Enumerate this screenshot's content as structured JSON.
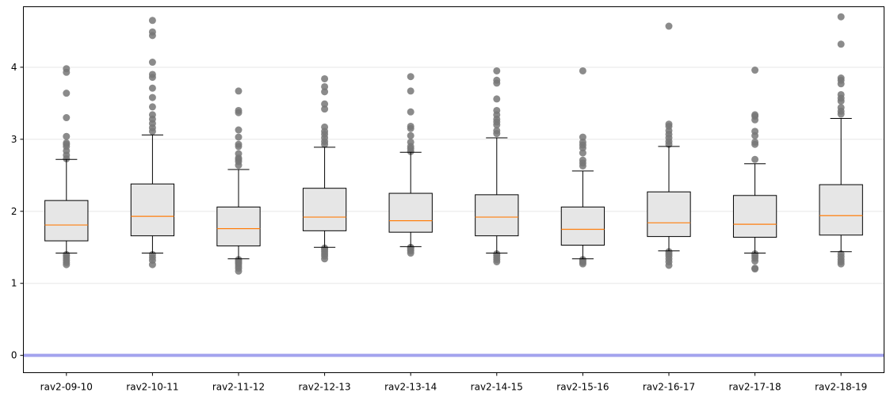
{
  "chart_data": {
    "type": "boxplot",
    "title": "",
    "xlabel": "",
    "ylabel": "",
    "ylim": [
      -0.24,
      4.84
    ],
    "yticks": [
      0,
      1,
      2,
      3,
      4
    ],
    "ytick_labels": [
      "0",
      "1",
      "2",
      "3",
      "4"
    ],
    "grid": "horizontal",
    "reference_line": {
      "y": 0,
      "color": "#a3a3ee"
    },
    "colors": {
      "box_fill": "#e6e6e6",
      "box_edge": "#000000",
      "median": "#ff7f0e",
      "outlier": "#777777",
      "grid": "#eeeeee"
    },
    "categories": [
      "rav2-09-10",
      "rav2-10-11",
      "rav2-11-12",
      "rav2-12-13",
      "rav2-13-14",
      "rav2-14-15",
      "rav2-15-16",
      "rav2-16-17",
      "rav2-17-18",
      "rav2-18-19"
    ],
    "boxes": [
      {
        "whislo": 1.42,
        "q1": 1.59,
        "med": 1.81,
        "q3": 2.15,
        "whishi": 2.72,
        "fliers": [
          1.26,
          1.29,
          1.32,
          1.35,
          1.38,
          1.4,
          2.73,
          2.78,
          2.84,
          2.9,
          2.93,
          2.95,
          3.04,
          3.3,
          3.64,
          3.93,
          3.98
        ]
      },
      {
        "whislo": 1.42,
        "q1": 1.66,
        "med": 1.93,
        "q3": 2.38,
        "whishi": 3.06,
        "fliers": [
          1.26,
          1.32,
          1.36,
          1.4,
          3.11,
          3.16,
          3.22,
          3.28,
          3.34,
          3.45,
          3.58,
          3.71,
          3.86,
          3.9,
          4.07,
          4.44,
          4.49,
          4.65
        ]
      },
      {
        "whislo": 1.34,
        "q1": 1.52,
        "med": 1.76,
        "q3": 2.06,
        "whishi": 2.58,
        "fliers": [
          1.17,
          1.21,
          1.24,
          1.27,
          1.29,
          1.31,
          1.33,
          2.64,
          2.69,
          2.72,
          2.74,
          2.8,
          2.9,
          2.93,
          3.03,
          3.13,
          3.37,
          3.4,
          3.67
        ]
      },
      {
        "whislo": 1.5,
        "q1": 1.73,
        "med": 1.92,
        "q3": 2.32,
        "whishi": 2.89,
        "fliers": [
          1.34,
          1.38,
          1.41,
          1.44,
          1.47,
          1.49,
          2.93,
          2.97,
          3.02,
          3.07,
          3.11,
          3.17,
          3.42,
          3.49,
          3.66,
          3.73,
          3.84
        ]
      },
      {
        "whislo": 1.51,
        "q1": 1.71,
        "med": 1.87,
        "q3": 2.25,
        "whishi": 2.82,
        "fliers": [
          1.42,
          1.45,
          1.47,
          1.49,
          1.5,
          2.83,
          2.87,
          2.9,
          2.96,
          3.05,
          3.15,
          3.18,
          3.38,
          3.67,
          3.87
        ]
      },
      {
        "whislo": 1.42,
        "q1": 1.66,
        "med": 1.92,
        "q3": 2.23,
        "whishi": 3.02,
        "fliers": [
          1.3,
          1.33,
          1.36,
          1.39,
          1.41,
          3.08,
          3.12,
          3.2,
          3.24,
          3.28,
          3.34,
          3.4,
          3.56,
          3.78,
          3.82,
          3.95
        ]
      },
      {
        "whislo": 1.34,
        "q1": 1.53,
        "med": 1.75,
        "q3": 2.06,
        "whishi": 2.56,
        "fliers": [
          1.27,
          1.29,
          1.31,
          1.33,
          2.63,
          2.67,
          2.71,
          2.81,
          2.88,
          2.92,
          2.96,
          3.03,
          3.95
        ]
      },
      {
        "whislo": 1.45,
        "q1": 1.65,
        "med": 1.84,
        "q3": 2.27,
        "whishi": 2.9,
        "fliers": [
          1.25,
          1.3,
          1.34,
          1.38,
          1.41,
          1.44,
          2.93,
          2.97,
          3.02,
          3.07,
          3.12,
          3.18,
          3.21,
          4.57
        ]
      },
      {
        "whislo": 1.42,
        "q1": 1.64,
        "med": 1.82,
        "q3": 2.22,
        "whishi": 2.66,
        "fliers": [
          1.2,
          1.21,
          1.31,
          1.35,
          1.38,
          1.41,
          2.72,
          2.93,
          2.96,
          3.05,
          3.11,
          3.27,
          3.32,
          3.34,
          3.96
        ]
      },
      {
        "whislo": 1.44,
        "q1": 1.67,
        "med": 1.94,
        "q3": 2.37,
        "whishi": 3.29,
        "fliers": [
          1.27,
          1.3,
          1.33,
          1.37,
          1.41,
          3.35,
          3.39,
          3.44,
          3.53,
          3.57,
          3.62,
          3.77,
          3.82,
          3.85,
          4.32,
          4.7
        ]
      }
    ]
  }
}
